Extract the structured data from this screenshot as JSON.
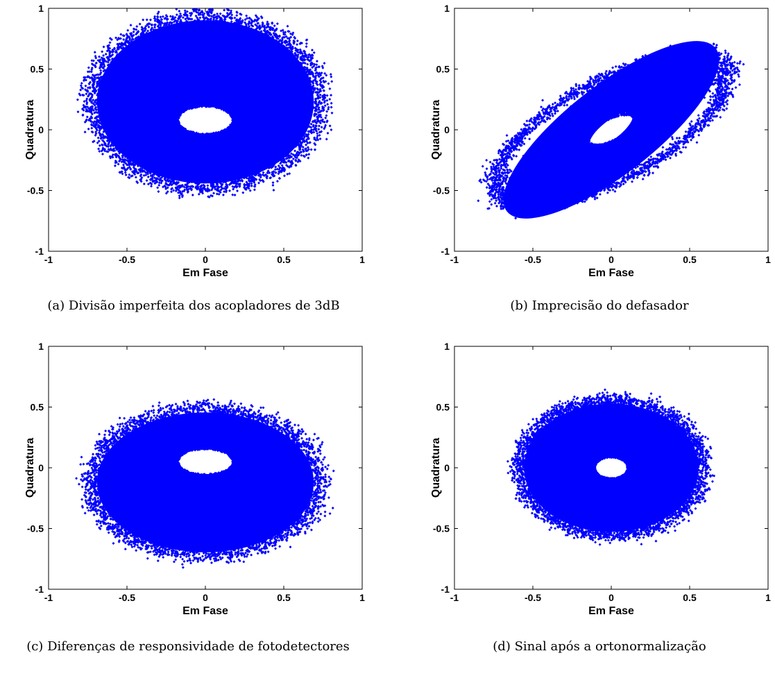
{
  "chart_data": [
    {
      "type": "scatter",
      "panel_label": "(a)",
      "caption": "Divisão imperfeita dos acopladores de 3dB",
      "xlabel": "Em Fase",
      "ylabel": "Quadratura",
      "xlim": [
        -1,
        1
      ],
      "ylim": [
        -1,
        1
      ],
      "xticks": [
        -1,
        -0.5,
        0,
        0.5,
        1
      ],
      "yticks": [
        -1,
        -0.5,
        0,
        0.5,
        1
      ],
      "xtick_labels": [
        "-1",
        "-0.5",
        "0",
        "0.5",
        "1"
      ],
      "ytick_labels": [
        "-1",
        "-0.5",
        "0",
        "0.5",
        "1"
      ],
      "grid": false,
      "color": "#0000ff",
      "distribution": {
        "shape": "ring",
        "center": [
          0.0,
          0.23
        ],
        "outer_radius_x": 0.72,
        "outer_radius_y": 0.7,
        "inner_radius_x": 0.2,
        "inner_radius_y": 0.13,
        "inner_center": [
          0.0,
          0.08
        ],
        "tilt_deg": 0,
        "approx_x_range": [
          -0.85,
          0.8
        ],
        "approx_y_range": [
          -0.5,
          0.98
        ]
      }
    },
    {
      "type": "scatter",
      "panel_label": "(b)",
      "caption": "Imprecisão do defasador",
      "xlabel": "Em Fase",
      "ylabel": "Quadratura",
      "xlim": [
        -1,
        1
      ],
      "ylim": [
        -1,
        1
      ],
      "xticks": [
        -1,
        -0.5,
        0,
        0.5,
        1
      ],
      "yticks": [
        -1,
        -0.5,
        0,
        0.5,
        1
      ],
      "xtick_labels": [
        "-1",
        "-0.5",
        "0",
        "0.5",
        "1"
      ],
      "ytick_labels": [
        "-1",
        "-0.5",
        "0",
        "0.5",
        "1"
      ],
      "grid": false,
      "color": "#0000ff",
      "distribution": {
        "shape": "ring",
        "center": [
          0.0,
          0.0
        ],
        "outer_radius_x": 0.88,
        "outer_radius_y": 0.38,
        "inner_radius_x": 0.2,
        "inner_radius_y": 0.09,
        "inner_center": [
          0.0,
          0.0
        ],
        "tilt_deg": -38,
        "approx_x_range": [
          -0.8,
          0.8
        ],
        "approx_y_range": [
          -0.85,
          0.85
        ]
      }
    },
    {
      "type": "scatter",
      "panel_label": "(c)",
      "caption": "Diferenças de responsividade de fotodetectores",
      "xlabel": "Em Fase",
      "ylabel": "Quadratura",
      "xlim": [
        -1,
        1
      ],
      "ylim": [
        -1,
        1
      ],
      "xticks": [
        -1,
        -0.5,
        0,
        0.5,
        1
      ],
      "yticks": [
        -1,
        -0.5,
        0,
        0.5,
        1
      ],
      "xtick_labels": [
        "-1",
        "-0.5",
        "0",
        "0.5",
        "1"
      ],
      "ytick_labels": [
        "-1",
        "-0.5",
        "0",
        "0.5",
        "1"
      ],
      "grid": false,
      "color": "#0000ff",
      "distribution": {
        "shape": "ring",
        "center": [
          0.0,
          -0.12
        ],
        "outer_radius_x": 0.72,
        "outer_radius_y": 0.6,
        "inner_radius_x": 0.2,
        "inner_radius_y": 0.12,
        "inner_center": [
          0.0,
          0.05
        ],
        "tilt_deg": 0,
        "approx_x_range": [
          -0.8,
          0.8
        ],
        "approx_y_range": [
          -0.82,
          0.54
        ]
      }
    },
    {
      "type": "scatter",
      "panel_label": "(d)",
      "caption": "Sinal após a ortonormalização",
      "xlabel": "Em Fase",
      "ylabel": "Quadratura",
      "xlim": [
        -1,
        1
      ],
      "ylim": [
        -1,
        1
      ],
      "xticks": [
        -1,
        -0.5,
        0,
        0.5,
        1
      ],
      "yticks": [
        -1,
        -0.5,
        0,
        0.5,
        1
      ],
      "xtick_labels": [
        "-1",
        "-0.5",
        "0",
        "0.5",
        "1"
      ],
      "ytick_labels": [
        "-1",
        "-0.5",
        "0",
        "0.5",
        "1"
      ],
      "grid": false,
      "color": "#0000ff",
      "distribution": {
        "shape": "ring",
        "center": [
          0.0,
          0.0
        ],
        "outer_radius_x": 0.58,
        "outer_radius_y": 0.55,
        "inner_radius_x": 0.12,
        "inner_radius_y": 0.1,
        "inner_center": [
          0.0,
          0.0
        ],
        "tilt_deg": 0,
        "approx_x_range": [
          -0.6,
          0.6
        ],
        "approx_y_range": [
          -0.66,
          0.58
        ]
      }
    }
  ]
}
